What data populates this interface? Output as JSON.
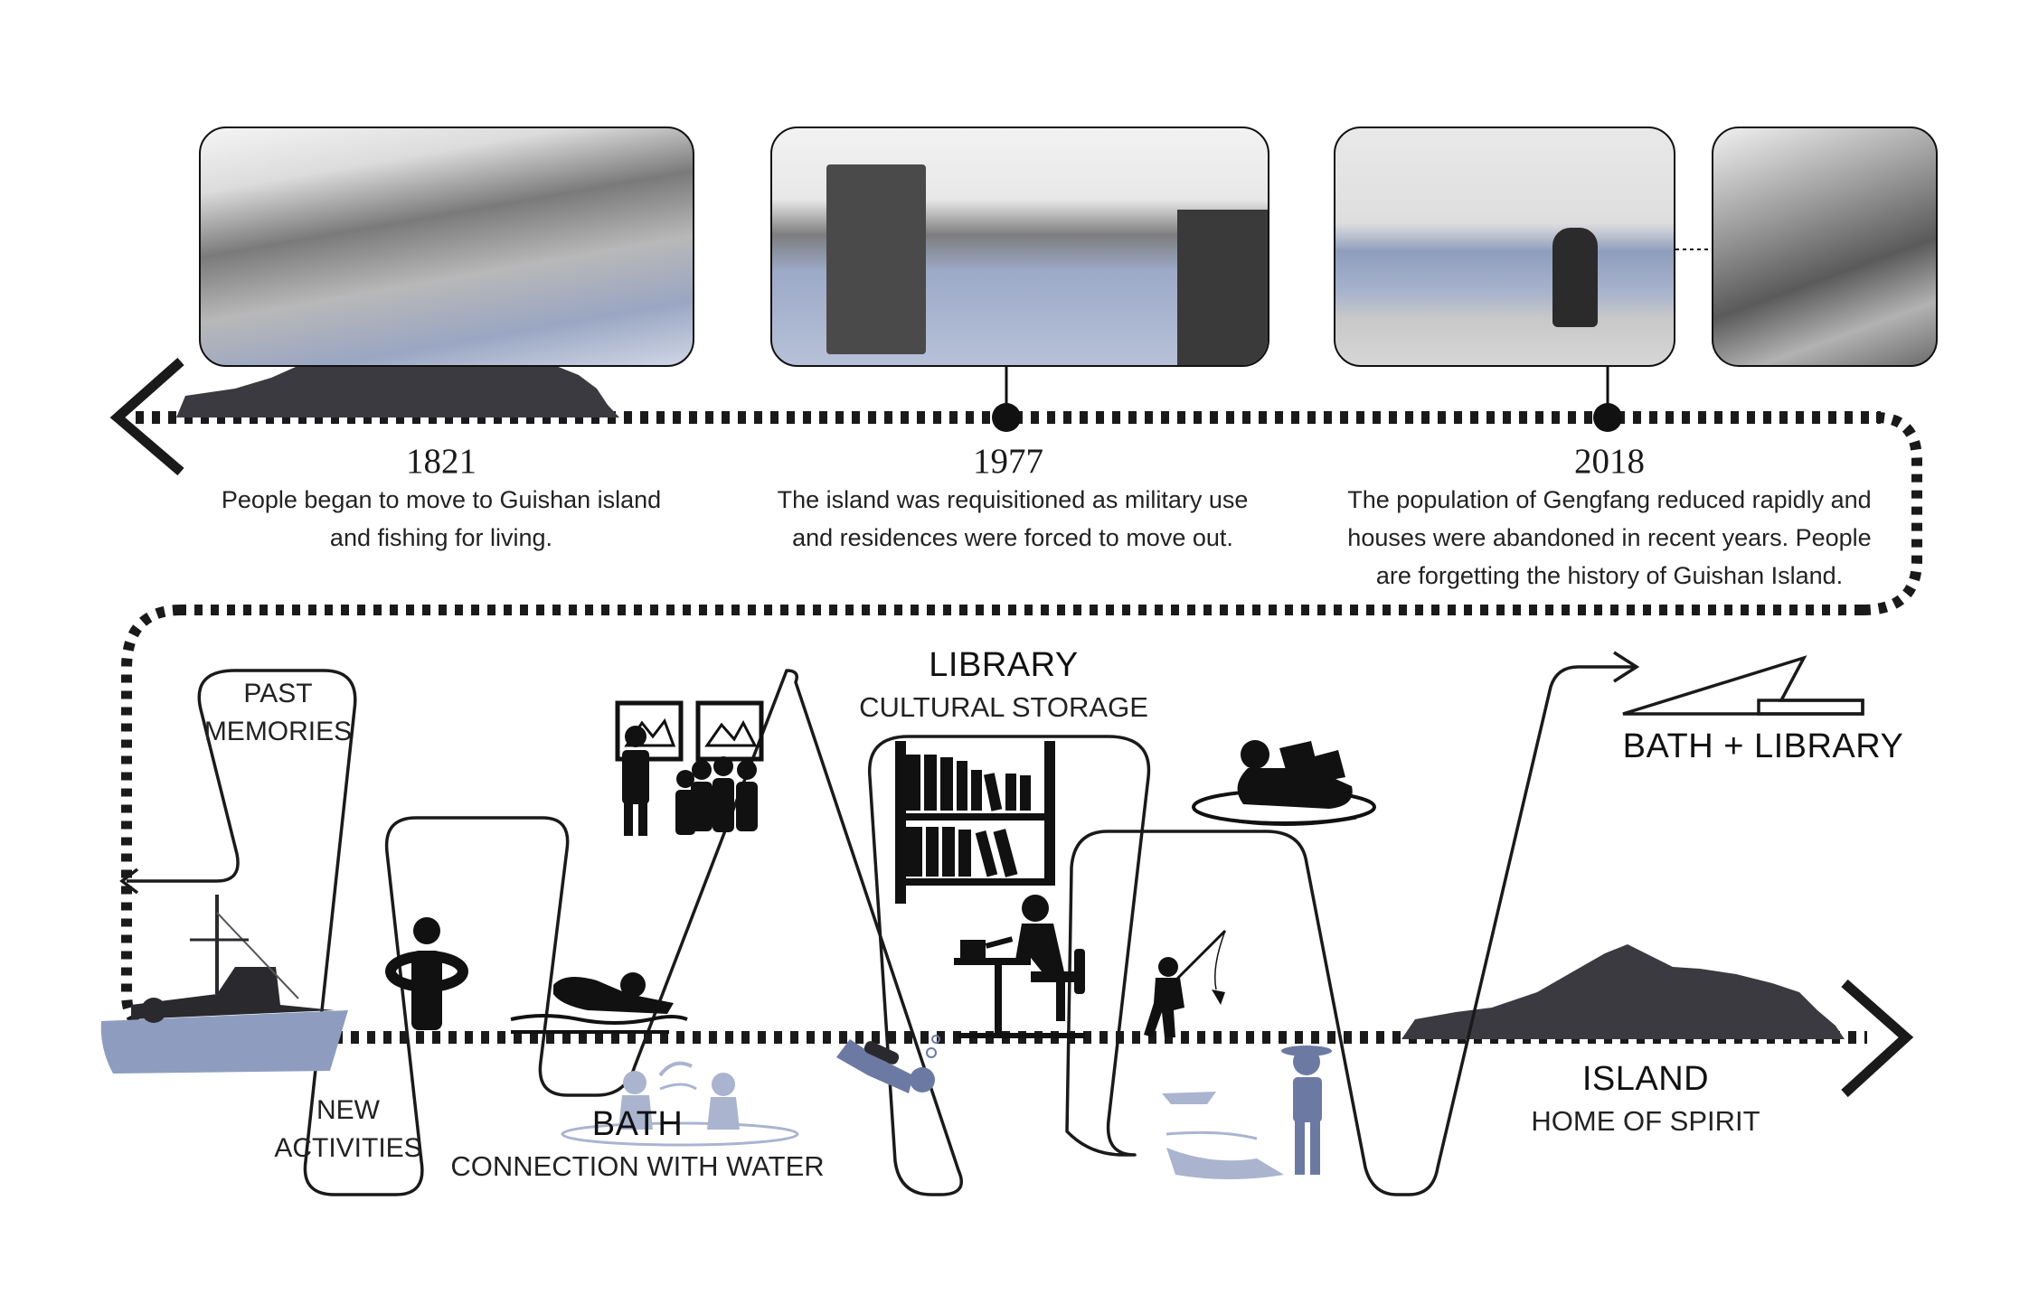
{
  "timeline": {
    "events": [
      {
        "year": "1821",
        "lines": [
          "People began to move to Guishan island",
          "and fishing for living."
        ]
      },
      {
        "year": "1977",
        "lines": [
          "The island was requisitioned as military use",
          "and residences were forced to move out."
        ]
      },
      {
        "year": "2018",
        "lines": [
          "The population of Gengfang reduced rapidly and",
          "houses were abandoned in recent years. People",
          "are forgetting the history of Guishan Island."
        ]
      }
    ]
  },
  "labels": {
    "past_memories": [
      "PAST",
      "MEMORIES"
    ],
    "new_activities": [
      "NEW",
      "ACTIVITIES"
    ],
    "library": {
      "title": "LIBRARY",
      "subtitle": "CULTURAL STORAGE"
    },
    "bath": {
      "title": "BATH",
      "subtitle": "CONNECTION WITH WATER"
    },
    "bath_library": "BATH + LIBRARY",
    "island": {
      "title": "ISLAND",
      "subtitle": "HOME OF SPIRIT"
    }
  },
  "colors": {
    "ink": "#111111",
    "island": "#3a3a40",
    "water": "#8e9dbf",
    "dots": "#1a1a1a"
  }
}
